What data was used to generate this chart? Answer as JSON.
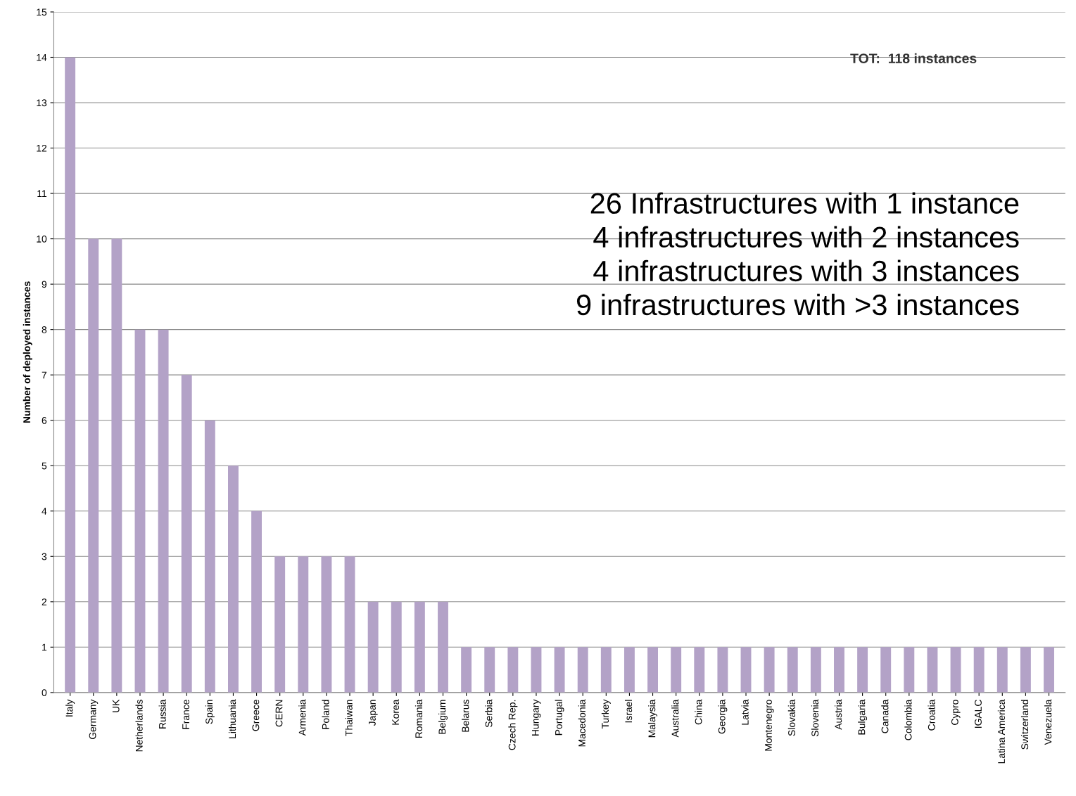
{
  "chart_data": {
    "type": "bar",
    "ylabel": "Number of deployed instances",
    "categories": [
      "Italy",
      "Germany",
      "UK",
      "Netherlands",
      "Russia",
      "France",
      "Spain",
      "Lithuania",
      "Greece",
      "CERN",
      "Armenia",
      "Poland",
      "Thaiwan",
      "Japan",
      "Korea",
      "Romania",
      "Belgium",
      "Belarus",
      "Serbia",
      "Czech Rep.",
      "Hungary",
      "Portugal",
      "Macedonia",
      "Turkey",
      "Israel",
      "Malaysia",
      "Australia",
      "China",
      "Georgia",
      "Latvia",
      "Montenegro",
      "Slovakia",
      "Slovenia",
      "Austria",
      "Bulgaria",
      "Canada",
      "Colombia",
      "Croatia",
      "Cypro",
      "IGALC",
      "Latina America",
      "Switzerland",
      "Venezuela"
    ],
    "values": [
      14,
      10,
      10,
      8,
      8,
      7,
      6,
      5,
      4,
      3,
      3,
      3,
      3,
      2,
      2,
      2,
      2,
      1,
      1,
      1,
      1,
      1,
      1,
      1,
      1,
      1,
      1,
      1,
      1,
      1,
      1,
      1,
      1,
      1,
      1,
      1,
      1,
      1,
      1,
      1,
      1,
      1,
      1
    ],
    "color": "#b3a2c7",
    "ylim": [
      0,
      15
    ],
    "yticks": [
      0,
      1,
      2,
      3,
      4,
      5,
      6,
      7,
      8,
      9,
      10,
      11,
      12,
      13,
      14,
      15
    ],
    "grid": "y",
    "annotations": [
      "TOT:  118 instances",
      "26 Infrastructures with 1 instance",
      "4 infrastructures with 2 instances",
      "4 infrastructures with 3 instances",
      "9 infrastructures with >3 instances"
    ]
  }
}
